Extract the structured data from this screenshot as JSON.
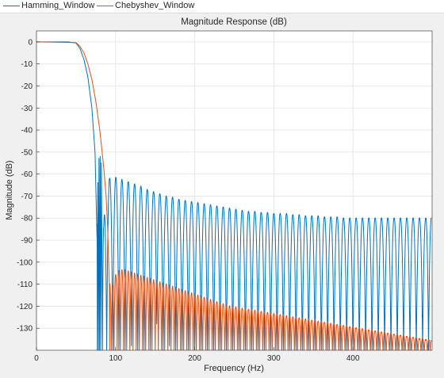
{
  "legend": {
    "items": [
      {
        "label": "Hamming_Window",
        "color": "#0072BD"
      },
      {
        "label": "Chebyshev_Window",
        "color": "#D95319"
      }
    ]
  },
  "chart_data": {
    "type": "line",
    "title": "Magnitude Response (dB)",
    "xlabel": "Frequency (Hz)",
    "ylabel": "Magnitude (dB)",
    "xlim": [
      0,
      500
    ],
    "ylim": [
      -140,
      5
    ],
    "xticks": [
      0,
      100,
      200,
      300,
      400
    ],
    "yticks": [
      0,
      -10,
      -20,
      -30,
      -40,
      -50,
      -60,
      -70,
      -80,
      -90,
      -100,
      -110,
      -120,
      -130
    ],
    "grid": true,
    "legend_position": "top",
    "series": [
      {
        "name": "Hamming_Window",
        "color": "#0072BD",
        "passband": {
          "x": [
            0,
            40,
            50,
            55,
            60,
            65,
            70,
            74,
            76.5
          ],
          "y": [
            0,
            0,
            -0.5,
            -3,
            -8,
            -16,
            -30,
            -50,
            -89
          ]
        },
        "sidelobes": {
          "x": [
            77.5,
            79,
            80.5,
            82,
            85,
            92.5,
            100.3,
            108,
            116,
            124,
            132,
            140,
            148,
            156,
            164,
            172,
            180,
            188,
            196,
            204,
            212,
            220,
            228,
            236,
            244,
            252,
            260,
            268,
            276,
            284,
            292,
            300,
            308,
            316,
            324,
            332,
            340,
            348,
            356,
            364,
            372,
            380,
            388,
            396,
            404,
            412,
            420,
            428,
            436,
            444,
            452,
            460,
            468,
            476,
            484,
            492,
            499
          ],
          "y": [
            -66,
            -53,
            -52,
            -55,
            -84,
            -62,
            -61.5,
            -62.5,
            -63.5,
            -64.5,
            -65.5,
            -67,
            -68,
            -69,
            -70,
            -70.5,
            -71.5,
            -72,
            -72.5,
            -73,
            -73.5,
            -74,
            -74.5,
            -75,
            -75.5,
            -76,
            -76.5,
            -77,
            -77,
            -77.5,
            -77.5,
            -78,
            -78,
            -78,
            -78.5,
            -78.5,
            -79,
            -79,
            -79,
            -79.5,
            -79.5,
            -79.5,
            -80,
            -80,
            -80,
            -80,
            -80,
            -80,
            -80,
            -80,
            -80,
            -80,
            -80,
            -80,
            -80,
            -80,
            -80
          ],
          "nulls": [
            -140,
            -140,
            -140,
            -140,
            -140,
            -140,
            -140,
            -140,
            -140,
            -138,
            -140,
            -140,
            -140,
            -128,
            -140,
            -138,
            -140,
            -140,
            -140,
            -140,
            -140,
            -140,
            -140,
            -140,
            -140,
            -140,
            -140,
            -140,
            -140,
            -140,
            -140,
            -140,
            -140,
            -140,
            -140,
            -140,
            -140,
            -140,
            -140,
            -140,
            -140,
            -140,
            -140,
            -140,
            -140,
            -140,
            -140,
            -140,
            -140,
            -140,
            -140,
            -140,
            -140,
            -140,
            -140,
            -140,
            -140
          ]
        }
      },
      {
        "name": "Chebyshev_Window",
        "color": "#D95319",
        "passband": {
          "x": [
            0,
            50,
            55,
            60,
            65,
            70,
            75,
            80,
            85,
            88,
            90,
            92
          ],
          "y": [
            0,
            -0.3,
            -2,
            -5,
            -10,
            -17,
            -27,
            -40,
            -57,
            -70,
            -85,
            -109
          ]
        },
        "sidelobes": {
          "x": [
            93,
            96,
            100,
            104,
            108,
            112,
            116,
            120,
            124,
            128,
            132,
            136,
            140,
            144,
            148,
            152,
            156,
            160,
            164,
            168,
            172,
            176,
            180,
            184,
            188,
            192,
            196,
            200,
            204,
            208,
            212,
            216,
            220,
            224,
            228,
            232,
            236,
            240,
            244,
            248,
            252,
            256,
            260,
            264,
            268,
            272,
            276,
            280,
            284,
            288,
            292,
            296,
            300,
            304,
            308,
            312,
            316,
            320,
            324,
            328,
            332,
            336,
            340,
            344,
            348,
            352,
            356,
            360,
            364,
            368,
            372,
            376,
            380,
            384,
            388,
            392,
            396,
            400,
            404,
            408,
            412,
            416,
            420,
            424,
            428,
            432,
            436,
            440,
            444,
            448,
            452,
            456,
            460,
            464,
            468,
            472,
            476,
            480,
            484,
            488,
            492,
            496,
            499
          ],
          "y": [
            -110,
            -112,
            -106,
            -104,
            -103.5,
            -103.5,
            -104,
            -104.5,
            -105,
            -105.5,
            -106,
            -106.5,
            -107,
            -107.5,
            -108,
            -108.5,
            -109,
            -109.5,
            -110,
            -110.5,
            -111,
            -111.5,
            -112,
            -112.5,
            -113,
            -113.5,
            -114,
            -114.5,
            -115,
            -115.5,
            -116,
            -116.5,
            -117,
            -117.5,
            -118,
            -118.5,
            -119,
            -119.5,
            -120,
            -120,
            -120.5,
            -120.5,
            -121,
            -121,
            -121.5,
            -121.5,
            -122,
            -122,
            -122.5,
            -122.5,
            -123,
            -123,
            -123.5,
            -123.5,
            -124,
            -124,
            -124.5,
            -124.5,
            -125,
            -125,
            -125.5,
            -125.5,
            -126,
            -126,
            -126.5,
            -126.5,
            -127,
            -127,
            -127.5,
            -127.5,
            -128,
            -128,
            -128.5,
            -128.5,
            -129,
            -129,
            -129.5,
            -129.5,
            -130,
            -130,
            -130.5,
            -130.5,
            -131,
            -131,
            -131.5,
            -131.5,
            -132,
            -132,
            -132.5,
            -132.5,
            -133,
            -133,
            -133.5,
            -133.5,
            -134,
            -134,
            -134.5,
            -134.5,
            -135,
            -135,
            -135.5,
            -135.5,
            -136
          ]
        }
      }
    ]
  }
}
